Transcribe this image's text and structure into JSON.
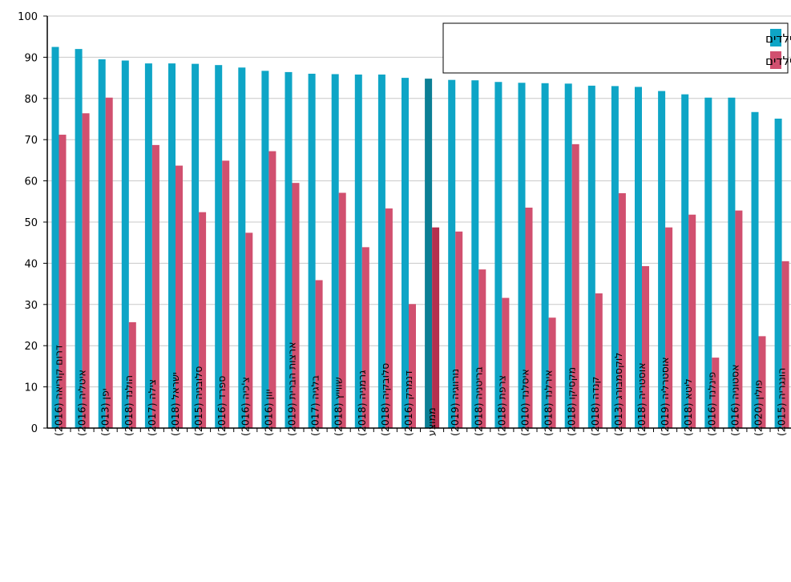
{
  "chart_data": {
    "type": "bar",
    "ylim": [
      0,
      100
    ],
    "yticks": [
      0,
      10,
      20,
      30,
      40,
      50,
      60,
      70,
      80,
      90,
      100
    ],
    "grid": true,
    "legend_position": "top-right",
    "categories": [
      "דרום קוריאה (2016)",
      "איטליה (2016)",
      "יפן (2013)",
      "הולנד (2018)",
      "צילה (2017)",
      "ישראל (2018)",
      "סלובניה (2015)",
      "ספרד (2016)",
      "צ'כיה (2016)",
      "יוון (2016)",
      "ארצות הברית (2019)",
      "בלגיה (2017)",
      "שווייץ (2018)",
      "גרמניה (2018)",
      "סלובקיה (2018)",
      "דנמרק (2016)",
      "ממוצע",
      "נורווגיה (2019)",
      "בריטניה (2018)",
      "צרפת (2018)",
      "איסלנד (2010)",
      "אירלנד (2018)",
      "מקסיקו (2018)",
      "קנדה (2018)",
      "לוקסמבורג (2013)",
      "אוסטריה (2018)",
      "אוסטרליה (2019)",
      "ליטא (2018)",
      "פינלנד (2016)",
      "אסטוניה (2016)",
      "פולין (2020)",
      "הונגריה (2015)"
    ],
    "highlight_category": "ממוצע",
    "series": [
      {
        "name": "ההכנסה מעבודה - משקי בית עם ילדים",
        "color": "#0ea5c6",
        "highlight_color": "#0b7f95",
        "values": [
          92.5,
          92,
          89.5,
          89.2,
          88.5,
          88.5,
          88.4,
          88.1,
          87.5,
          86.7,
          86.4,
          86,
          85.9,
          85.8,
          85.8,
          85,
          84.8,
          84.5,
          84.4,
          84,
          83.8,
          83.7,
          83.6,
          83.1,
          83,
          82.8,
          81.8,
          81,
          80.2,
          80.2,
          76.7,
          75.1
        ]
      },
      {
        "name": "ההכנסה מעבודה - משקי בית עניים עם ילדים",
        "color": "#d1506f",
        "highlight_color": "#b5304e",
        "values": [
          71.2,
          76.4,
          80.2,
          25.7,
          68.7,
          63.7,
          52.4,
          64.9,
          47.4,
          67.2,
          59.5,
          35.9,
          57.1,
          43.9,
          53.3,
          30.1,
          48.7,
          47.7,
          38.5,
          31.6,
          53.5,
          26.8,
          68.9,
          32.7,
          57,
          39.3,
          48.7,
          51.8,
          17.1,
          52.8,
          22.3,
          40.5
        ]
      }
    ]
  }
}
